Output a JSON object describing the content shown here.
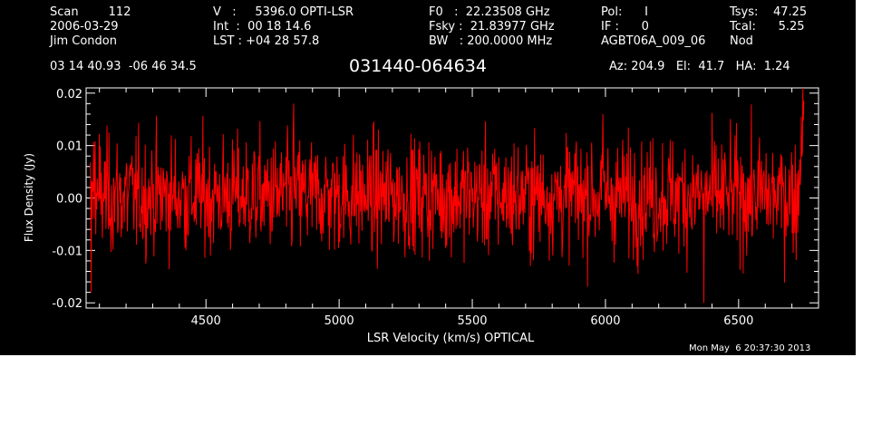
{
  "header": {
    "col1": [
      "Scan        112",
      "2006-03-29",
      "Jim Condon"
    ],
    "col2": [
      "V   :     5396.0 OPTI-LSR",
      "Int  :  00 18 14.6",
      "LST : +04 28 57.8"
    ],
    "col3": [
      "F0   :  22.23508 GHz",
      "Fsky :  21.83977 GHz",
      "BW   : 200.0000 MHz"
    ],
    "col4": [
      "Pol:      I",
      "IF :      0",
      "AGBT06A_009_06"
    ],
    "col5": [
      "Tsys:    47.25",
      "Tcal:      5.25",
      "Nod"
    ],
    "coords": "03 14 40.93  -06 46 34.5",
    "source": "031440-064634",
    "azelha": "Az: 204.9   El:  41.7   HA:  1.24",
    "timestamp": "Mon May  6 20:37:30 2013"
  },
  "chart_data": {
    "type": "line",
    "xlabel": "LSR Velocity (km/s) OPTICAL",
    "ylabel": "Flux Density (Jy)",
    "xlim": [
      4050,
      6800
    ],
    "ylim": [
      -0.021,
      0.021
    ],
    "xticks": [
      4500,
      5000,
      5500,
      6000,
      6500
    ],
    "xtick_labels": [
      "4500",
      "5000",
      "5500",
      "6000",
      "6500"
    ],
    "yticks": [
      -0.02,
      -0.01,
      0.0,
      0.01,
      0.02
    ],
    "ytick_labels": [
      "-0.02",
      "-0.01",
      "0.00",
      "0.01",
      "0.02"
    ],
    "series_color": "#ff0000",
    "series": [
      {
        "x_range": [
          4065,
          6745
        ],
        "n_points": 1400,
        "mean": 0.0005,
        "noise_rms": 0.0055,
        "start_value": 0.0,
        "end_value": 0.0185,
        "notable_points": [
          [
            4068,
            -0.018
          ],
          [
            6370,
            -0.02
          ],
          [
            6745,
            0.0185
          ],
          [
            4830,
            0.018
          ],
          [
            5990,
            0.016
          ]
        ]
      }
    ]
  }
}
